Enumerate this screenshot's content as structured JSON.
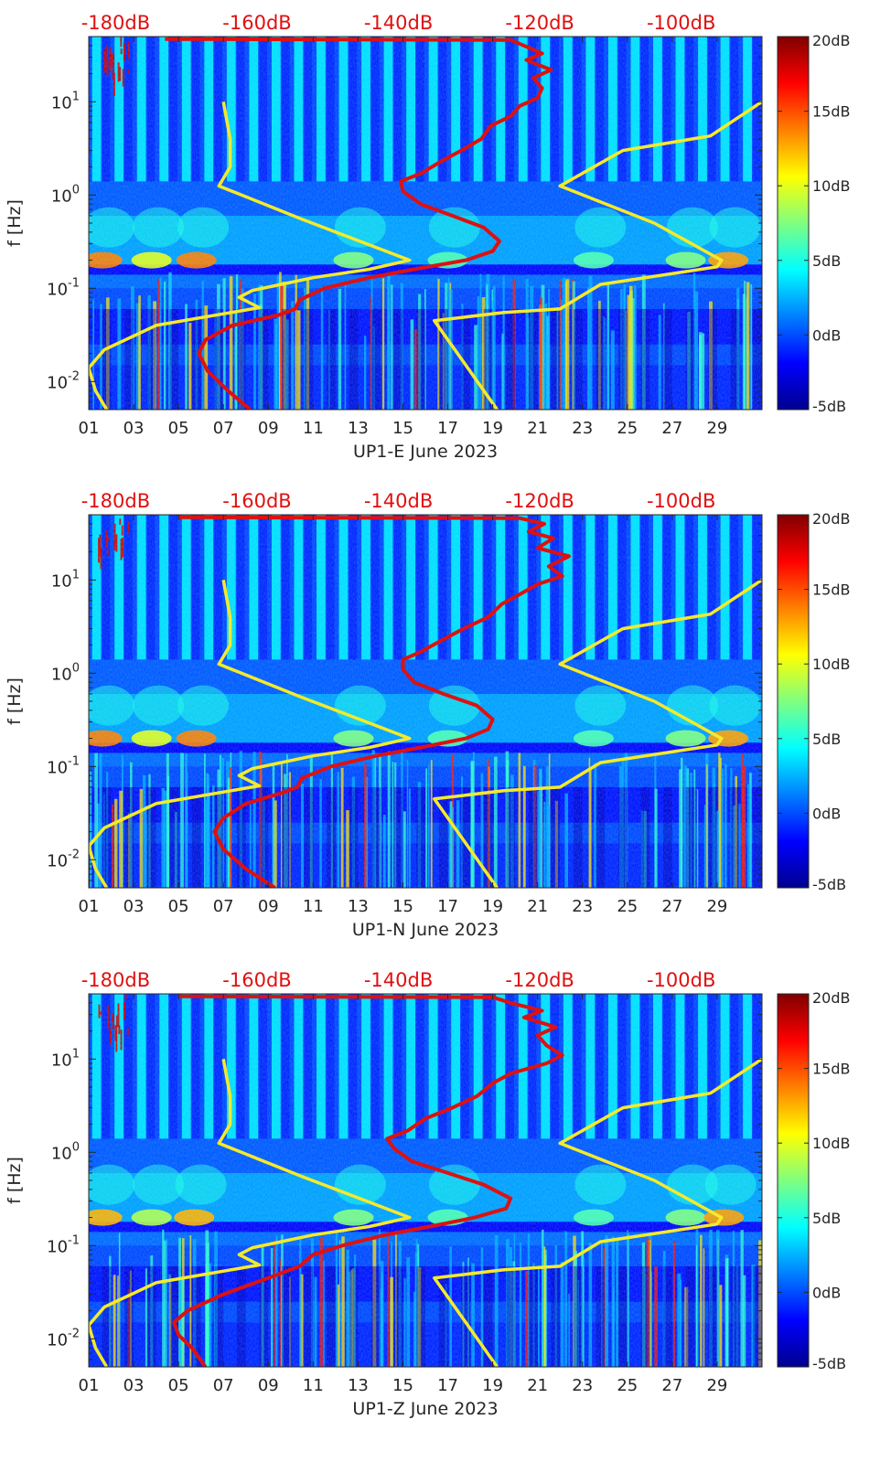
{
  "colors": {
    "psd_curve": "#dd1111",
    "noise_model": "#f5ea2a",
    "top_axis_text": "#e01010",
    "axis_text": "#262626"
  },
  "colorbar": {
    "min": -5,
    "max": 20,
    "ticks": [
      -5,
      0,
      5,
      10,
      15,
      20
    ],
    "tick_labels": [
      "-5dB",
      "0dB",
      "5dB",
      "10dB",
      "15dB",
      "20dB"
    ]
  },
  "chart_data": [
    {
      "type": "heatmap",
      "station": "UP1-E",
      "xlabel": "UP1-E June 2023",
      "ylabel": "f [Hz]",
      "x_unit": "day of June 2023",
      "xlim": [
        1,
        31
      ],
      "x_ticks": [
        1,
        3,
        5,
        7,
        9,
        11,
        13,
        15,
        17,
        19,
        21,
        23,
        25,
        27,
        29
      ],
      "x_tick_labels": [
        "01",
        "03",
        "05",
        "07",
        "09",
        "11",
        "13",
        "15",
        "17",
        "19",
        "21",
        "23",
        "25",
        "27",
        "29"
      ],
      "ylim": [
        0.005,
        50
      ],
      "y_scale": "log",
      "y_ticks": [
        0.01,
        0.1,
        1,
        10
      ],
      "y_tick_labels": [
        {
          "b": "10",
          "e": "-2"
        },
        {
          "b": "10",
          "e": "-1"
        },
        {
          "b": "10",
          "e": "0"
        },
        {
          "b": "10",
          "e": "1"
        }
      ],
      "top_axis": {
        "label_values": [
          -180,
          -160,
          -140,
          -120,
          -100
        ],
        "labels": [
          "-180dB",
          "-160dB",
          "-140dB",
          "-120dB",
          "-100dB"
        ],
        "at_day": [
          2.2,
          8.5,
          14.8,
          21.1,
          27.4
        ]
      },
      "series": [
        {
          "name": "median PSD",
          "color": "#dd1111",
          "points_day_hz": [
            [
              8.2,
              0.005
            ],
            [
              7.2,
              0.008
            ],
            [
              6.3,
              0.013
            ],
            [
              5.9,
              0.02
            ],
            [
              6.2,
              0.028
            ],
            [
              7.4,
              0.04
            ],
            [
              9.5,
              0.052
            ],
            [
              10.2,
              0.06
            ],
            [
              10.4,
              0.075
            ],
            [
              11.5,
              0.1
            ],
            [
              13.5,
              0.13
            ],
            [
              15.5,
              0.16
            ],
            [
              17.8,
              0.2
            ],
            [
              19.0,
              0.25
            ],
            [
              19.3,
              0.32
            ],
            [
              18.6,
              0.45
            ],
            [
              17.2,
              0.6
            ],
            [
              15.8,
              0.8
            ],
            [
              15.0,
              1.1
            ],
            [
              14.9,
              1.4
            ],
            [
              15.8,
              1.7
            ],
            [
              16.7,
              2.3
            ],
            [
              17.6,
              3.0
            ],
            [
              18.5,
              4.0
            ],
            [
              18.9,
              5.5
            ],
            [
              19.8,
              7.0
            ],
            [
              20.2,
              9.0
            ],
            [
              21.0,
              11.0
            ],
            [
              21.2,
              14.0
            ],
            [
              20.8,
              18.0
            ],
            [
              21.6,
              22.0
            ],
            [
              20.5,
              28.0
            ],
            [
              21.2,
              33.0
            ],
            [
              20.4,
              40.0
            ],
            [
              19.8,
              46.0
            ],
            [
              12.0,
              46.5
            ],
            [
              4.4,
              47.0
            ]
          ]
        },
        {
          "name": "noise model low",
          "color": "#f5ea2a",
          "points_day_hz": [
            [
              1.8,
              0.005
            ],
            [
              1.3,
              0.008
            ],
            [
              1.0,
              0.014
            ],
            [
              1.7,
              0.022
            ],
            [
              4.0,
              0.04
            ],
            [
              8.6,
              0.062
            ],
            [
              7.7,
              0.08
            ],
            [
              8.3,
              0.095
            ],
            [
              11.0,
              0.13
            ],
            [
              13.5,
              0.16
            ],
            [
              15.3,
              0.2
            ],
            [
              10.5,
              0.55
            ],
            [
              6.8,
              1.25
            ],
            [
              7.3,
              2.0
            ],
            [
              7.3,
              4.0
            ],
            [
              7.0,
              10.0
            ]
          ]
        },
        {
          "name": "noise model high",
          "color": "#f5ea2a",
          "points_day_hz": [
            [
              19.2,
              0.005
            ],
            [
              16.4,
              0.045
            ],
            [
              19.5,
              0.055
            ],
            [
              22.0,
              0.06
            ],
            [
              23.8,
              0.11
            ],
            [
              29.0,
              0.17
            ],
            [
              29.2,
              0.2
            ],
            [
              26.2,
              0.5
            ],
            [
              22.0,
              1.25
            ],
            [
              24.8,
              3.0
            ],
            [
              28.7,
              4.3
            ],
            [
              31.0,
              10.0
            ]
          ]
        }
      ]
    },
    {
      "type": "heatmap",
      "station": "UP1-N",
      "xlabel": "UP1-N June 2023",
      "ylabel": "f [Hz]",
      "x_unit": "day of June 2023",
      "xlim": [
        1,
        31
      ],
      "x_ticks": [
        1,
        3,
        5,
        7,
        9,
        11,
        13,
        15,
        17,
        19,
        21,
        23,
        25,
        27,
        29
      ],
      "x_tick_labels": [
        "01",
        "03",
        "05",
        "07",
        "09",
        "11",
        "13",
        "15",
        "17",
        "19",
        "21",
        "23",
        "25",
        "27",
        "29"
      ],
      "ylim": [
        0.005,
        50
      ],
      "y_scale": "log",
      "y_ticks": [
        0.01,
        0.1,
        1,
        10
      ],
      "y_tick_labels": [
        {
          "b": "10",
          "e": "-2"
        },
        {
          "b": "10",
          "e": "-1"
        },
        {
          "b": "10",
          "e": "0"
        },
        {
          "b": "10",
          "e": "1"
        }
      ],
      "top_axis": {
        "label_values": [
          -180,
          -160,
          -140,
          -120,
          -100
        ],
        "labels": [
          "-180dB",
          "-160dB",
          "-140dB",
          "-120dB",
          "-100dB"
        ],
        "at_day": [
          2.2,
          8.5,
          14.8,
          21.1,
          27.4
        ]
      },
      "series": [
        {
          "name": "median PSD",
          "color": "#dd1111",
          "points_day_hz": [
            [
              9.3,
              0.005
            ],
            [
              8.0,
              0.008
            ],
            [
              7.0,
              0.013
            ],
            [
              6.6,
              0.02
            ],
            [
              7.0,
              0.028
            ],
            [
              8.0,
              0.04
            ],
            [
              9.6,
              0.052
            ],
            [
              10.3,
              0.06
            ],
            [
              10.5,
              0.075
            ],
            [
              11.8,
              0.1
            ],
            [
              13.8,
              0.13
            ],
            [
              15.8,
              0.16
            ],
            [
              17.8,
              0.2
            ],
            [
              18.8,
              0.25
            ],
            [
              19.0,
              0.32
            ],
            [
              18.3,
              0.45
            ],
            [
              16.8,
              0.6
            ],
            [
              15.5,
              0.8
            ],
            [
              15.0,
              1.1
            ],
            [
              15.0,
              1.4
            ],
            [
              15.8,
              1.7
            ],
            [
              16.8,
              2.3
            ],
            [
              17.7,
              3.0
            ],
            [
              18.8,
              4.0
            ],
            [
              19.4,
              5.5
            ],
            [
              20.2,
              7.0
            ],
            [
              21.0,
              9.0
            ],
            [
              22.1,
              11.0
            ],
            [
              21.5,
              14.0
            ],
            [
              22.4,
              18.0
            ],
            [
              21.0,
              22.0
            ],
            [
              21.7,
              28.0
            ],
            [
              20.6,
              33.0
            ],
            [
              21.3,
              40.0
            ],
            [
              20.2,
              46.0
            ],
            [
              12.0,
              46.5
            ],
            [
              5.0,
              47.0
            ]
          ]
        },
        {
          "name": "noise model low",
          "color": "#f5ea2a",
          "points_day_hz": [
            [
              1.8,
              0.005
            ],
            [
              1.3,
              0.008
            ],
            [
              1.0,
              0.014
            ],
            [
              1.7,
              0.022
            ],
            [
              4.0,
              0.04
            ],
            [
              8.6,
              0.062
            ],
            [
              7.7,
              0.08
            ],
            [
              8.3,
              0.095
            ],
            [
              11.0,
              0.13
            ],
            [
              13.5,
              0.16
            ],
            [
              15.3,
              0.2
            ],
            [
              10.5,
              0.55
            ],
            [
              6.8,
              1.25
            ],
            [
              7.3,
              2.0
            ],
            [
              7.3,
              4.0
            ],
            [
              7.0,
              10.0
            ]
          ]
        },
        {
          "name": "noise model high",
          "color": "#f5ea2a",
          "points_day_hz": [
            [
              19.2,
              0.005
            ],
            [
              16.4,
              0.045
            ],
            [
              19.5,
              0.055
            ],
            [
              22.0,
              0.06
            ],
            [
              23.8,
              0.11
            ],
            [
              29.0,
              0.17
            ],
            [
              29.2,
              0.2
            ],
            [
              26.2,
              0.5
            ],
            [
              22.0,
              1.25
            ],
            [
              24.8,
              3.0
            ],
            [
              28.7,
              4.3
            ],
            [
              31.0,
              10.0
            ]
          ]
        }
      ]
    },
    {
      "type": "heatmap",
      "station": "UP1-Z",
      "xlabel": "UP1-Z June 2023",
      "ylabel": "f [Hz]",
      "x_unit": "day of June 2023",
      "xlim": [
        1,
        31
      ],
      "x_ticks": [
        1,
        3,
        5,
        7,
        9,
        11,
        13,
        15,
        17,
        19,
        21,
        23,
        25,
        27,
        29
      ],
      "x_tick_labels": [
        "01",
        "03",
        "05",
        "07",
        "09",
        "11",
        "13",
        "15",
        "17",
        "19",
        "21",
        "23",
        "25",
        "27",
        "29"
      ],
      "ylim": [
        0.005,
        50
      ],
      "y_scale": "log",
      "y_ticks": [
        0.01,
        0.1,
        1,
        10
      ],
      "y_tick_labels": [
        {
          "b": "10",
          "e": "-2"
        },
        {
          "b": "10",
          "e": "-1"
        },
        {
          "b": "10",
          "e": "0"
        },
        {
          "b": "10",
          "e": "1"
        }
      ],
      "top_axis": {
        "label_values": [
          -180,
          -160,
          -140,
          -120,
          -100
        ],
        "labels": [
          "-180dB",
          "-160dB",
          "-140dB",
          "-120dB",
          "-100dB"
        ],
        "at_day": [
          2.2,
          8.5,
          14.8,
          21.1,
          27.4
        ]
      },
      "series": [
        {
          "name": "median PSD",
          "color": "#dd1111",
          "points_day_hz": [
            [
              6.2,
              0.005
            ],
            [
              5.6,
              0.008
            ],
            [
              5.0,
              0.011
            ],
            [
              4.8,
              0.015
            ],
            [
              5.4,
              0.02
            ],
            [
              7.0,
              0.03
            ],
            [
              9.0,
              0.045
            ],
            [
              10.4,
              0.06
            ],
            [
              11.0,
              0.08
            ],
            [
              12.3,
              0.1
            ],
            [
              14.2,
              0.13
            ],
            [
              16.2,
              0.16
            ],
            [
              18.2,
              0.2
            ],
            [
              19.6,
              0.25
            ],
            [
              19.8,
              0.32
            ],
            [
              18.6,
              0.45
            ],
            [
              17.0,
              0.6
            ],
            [
              15.4,
              0.8
            ],
            [
              14.6,
              1.1
            ],
            [
              14.3,
              1.4
            ],
            [
              15.2,
              1.7
            ],
            [
              16.0,
              2.3
            ],
            [
              17.2,
              3.0
            ],
            [
              18.3,
              4.0
            ],
            [
              19.0,
              5.5
            ],
            [
              19.8,
              7.0
            ],
            [
              21.4,
              9.0
            ],
            [
              22.1,
              11.0
            ],
            [
              21.4,
              14.0
            ],
            [
              21.0,
              18.0
            ],
            [
              21.8,
              22.0
            ],
            [
              20.4,
              28.0
            ],
            [
              21.2,
              33.0
            ],
            [
              19.8,
              40.0
            ],
            [
              19.0,
              46.0
            ],
            [
              12.0,
              46.5
            ],
            [
              5.0,
              47.0
            ]
          ]
        },
        {
          "name": "noise model low",
          "color": "#f5ea2a",
          "points_day_hz": [
            [
              1.8,
              0.005
            ],
            [
              1.3,
              0.008
            ],
            [
              1.0,
              0.014
            ],
            [
              1.7,
              0.022
            ],
            [
              4.0,
              0.04
            ],
            [
              8.6,
              0.062
            ],
            [
              7.7,
              0.08
            ],
            [
              8.3,
              0.095
            ],
            [
              11.0,
              0.13
            ],
            [
              13.5,
              0.16
            ],
            [
              15.3,
              0.2
            ],
            [
              10.5,
              0.55
            ],
            [
              6.8,
              1.25
            ],
            [
              7.3,
              2.0
            ],
            [
              7.3,
              4.0
            ],
            [
              7.0,
              10.0
            ]
          ]
        },
        {
          "name": "noise model high",
          "color": "#f5ea2a",
          "points_day_hz": [
            [
              19.2,
              0.005
            ],
            [
              16.4,
              0.045
            ],
            [
              19.5,
              0.055
            ],
            [
              22.0,
              0.06
            ],
            [
              23.8,
              0.11
            ],
            [
              29.0,
              0.17
            ],
            [
              29.2,
              0.2
            ],
            [
              26.2,
              0.5
            ],
            [
              22.0,
              1.25
            ],
            [
              24.8,
              3.0
            ],
            [
              28.7,
              4.3
            ],
            [
              31.0,
              10.0
            ]
          ]
        }
      ]
    }
  ]
}
